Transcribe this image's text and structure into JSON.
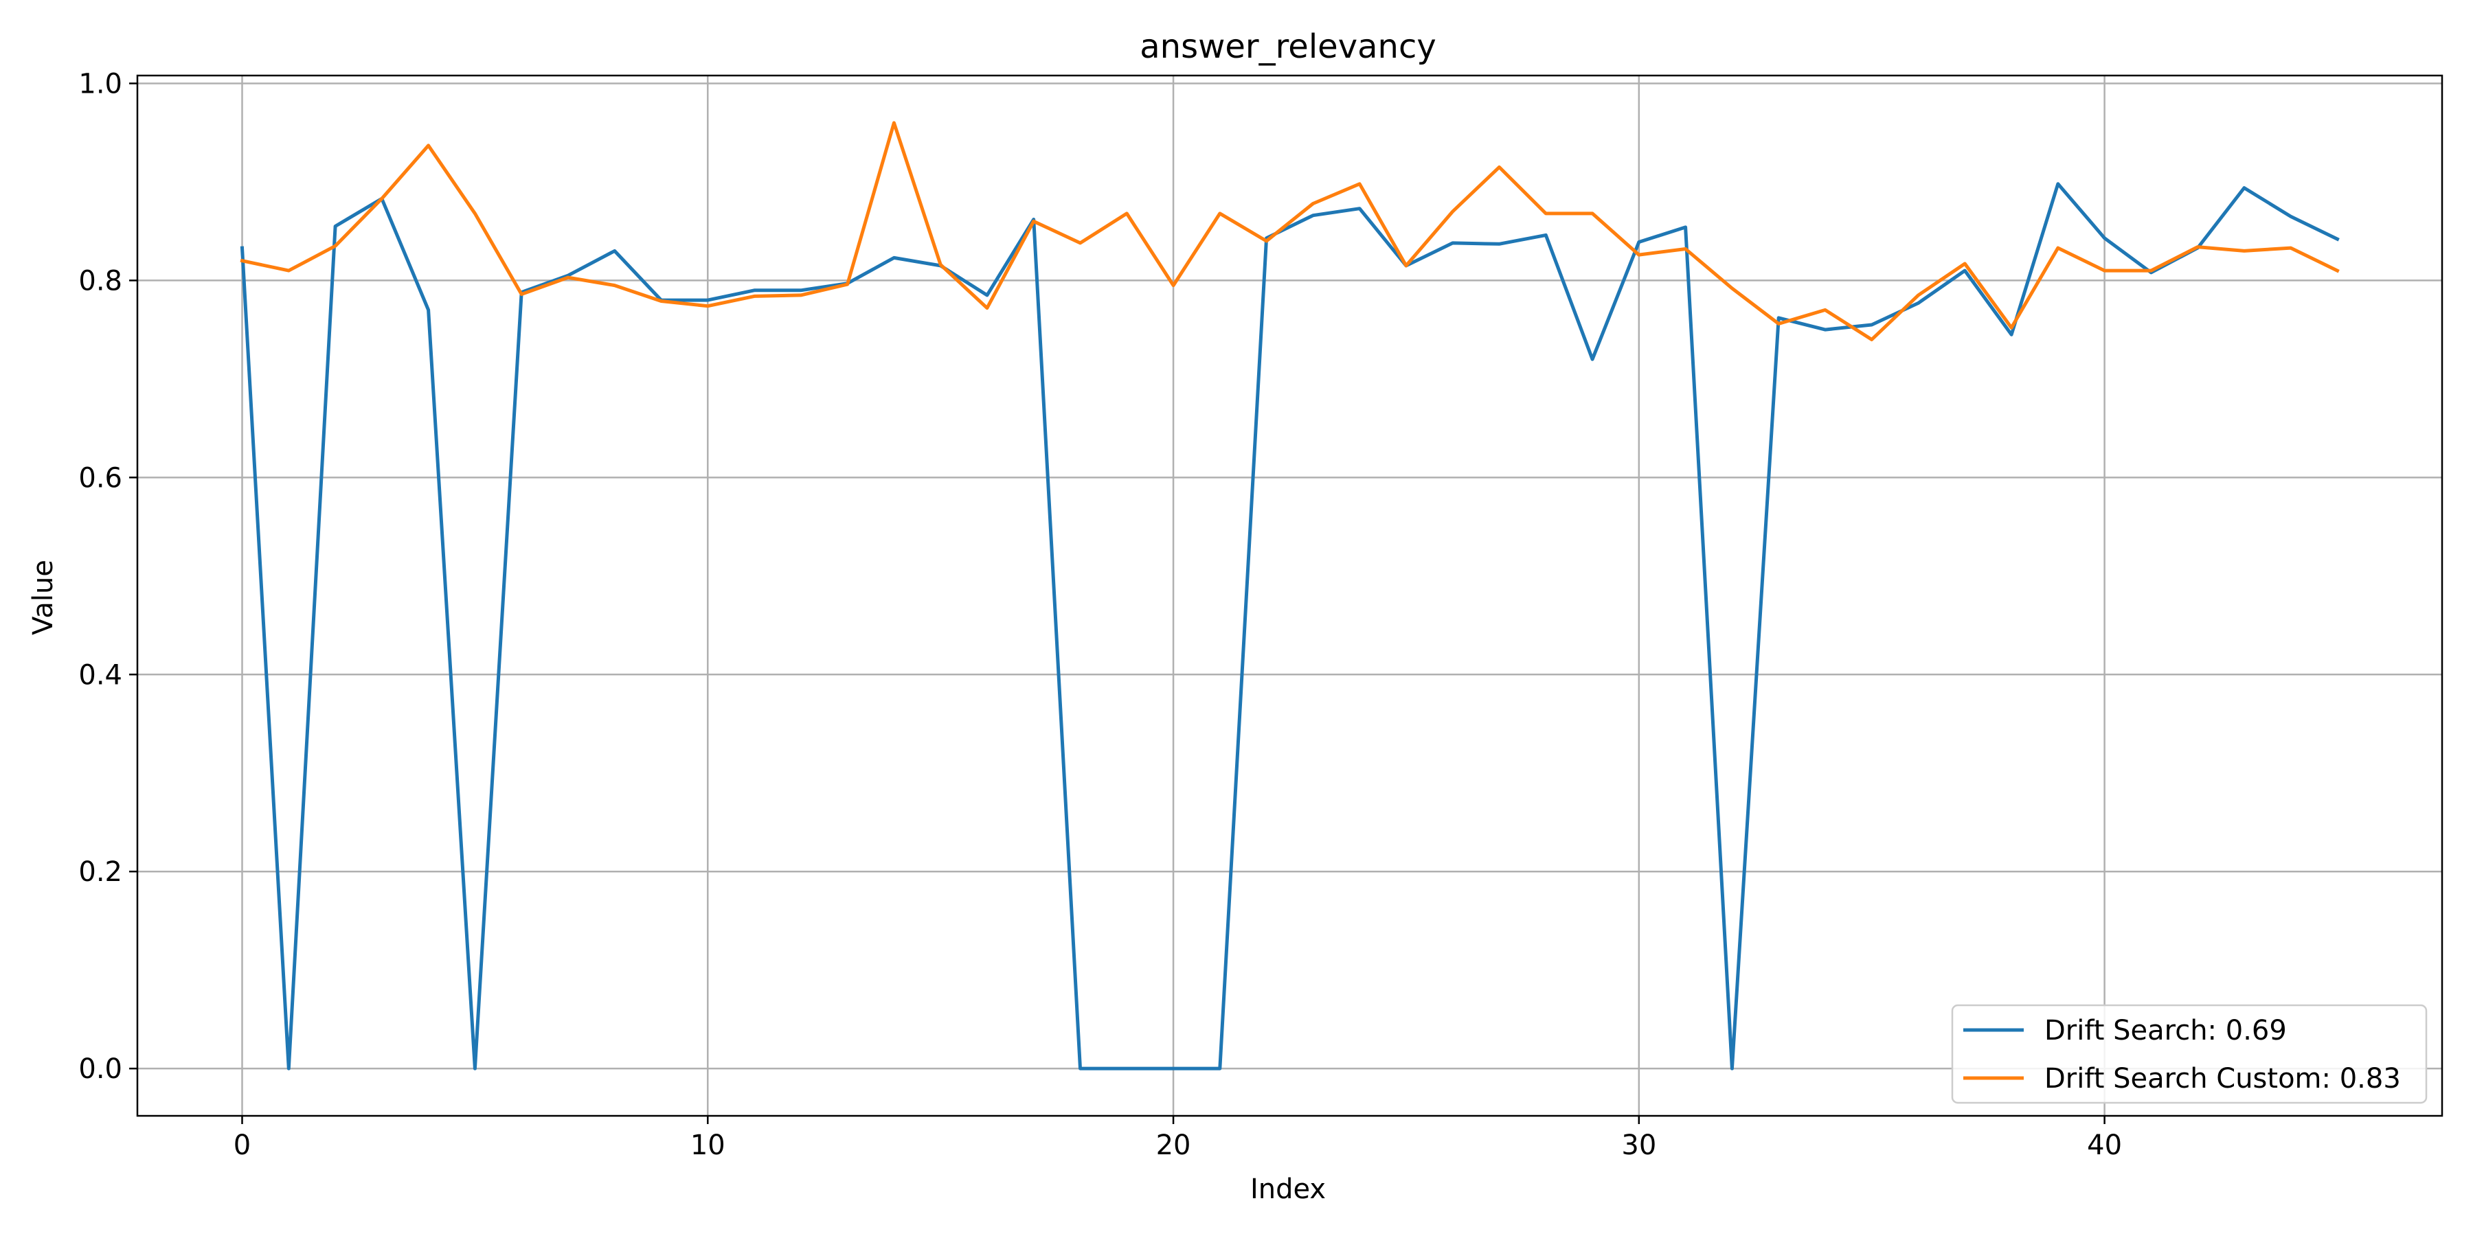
{
  "chart_data": {
    "type": "line",
    "title": "answer_relevancy",
    "xlabel": "Index",
    "ylabel": "Value",
    "xlim": [
      -2.25,
      47.25
    ],
    "ylim": [
      -0.048,
      1.008
    ],
    "xticks": [
      0,
      10,
      20,
      30,
      40
    ],
    "yticks": [
      0.0,
      0.2,
      0.4,
      0.6,
      0.8,
      1.0
    ],
    "xtick_labels": [
      "0",
      "10",
      "20",
      "30",
      "40"
    ],
    "ytick_labels": [
      "0.0",
      "0.2",
      "0.4",
      "0.6",
      "0.8",
      "1.0"
    ],
    "grid": true,
    "legend_position": "lower-right",
    "series": [
      {
        "name": "Drift Search: 0.69",
        "color": "#1f77b4",
        "x": [
          0,
          1,
          2,
          3,
          4,
          5,
          6,
          7,
          8,
          9,
          10,
          11,
          12,
          13,
          14,
          15,
          16,
          17,
          18,
          19,
          20,
          21,
          22,
          23,
          24,
          25,
          26,
          27,
          28,
          29,
          30,
          31,
          32,
          33,
          34,
          35,
          36,
          37,
          38,
          39,
          40,
          41,
          42,
          43,
          44,
          45
        ],
        "values": [
          0.833,
          0.0,
          0.855,
          0.883,
          0.77,
          0.0,
          0.788,
          0.805,
          0.83,
          0.78,
          0.78,
          0.79,
          0.79,
          0.797,
          0.823,
          0.815,
          0.785,
          0.862,
          0.0,
          0.0,
          0.0,
          0.0,
          0.843,
          0.866,
          0.873,
          0.815,
          0.838,
          0.837,
          0.846,
          0.72,
          0.839,
          0.854,
          0.0,
          0.762,
          0.75,
          0.755,
          0.777,
          0.81,
          0.745,
          0.898,
          0.843,
          0.808,
          0.833,
          0.894,
          0.865,
          0.842
        ]
      },
      {
        "name": "Drift Search Custom: 0.83",
        "color": "#ff7f0e",
        "x": [
          0,
          1,
          2,
          3,
          4,
          5,
          6,
          7,
          8,
          9,
          10,
          11,
          12,
          13,
          14,
          15,
          16,
          17,
          18,
          19,
          20,
          21,
          22,
          23,
          24,
          25,
          26,
          27,
          28,
          29,
          30,
          31,
          32,
          33,
          34,
          35,
          36,
          37,
          38,
          39,
          40,
          41,
          42,
          43,
          44,
          45
        ],
        "values": [
          0.82,
          0.81,
          0.835,
          0.883,
          0.937,
          0.868,
          0.786,
          0.803,
          0.795,
          0.779,
          0.774,
          0.784,
          0.785,
          0.796,
          0.96,
          0.816,
          0.772,
          0.86,
          0.838,
          0.868,
          0.795,
          0.868,
          0.84,
          0.878,
          0.898,
          0.815,
          0.87,
          0.915,
          0.868,
          0.868,
          0.826,
          0.832,
          0.792,
          0.756,
          0.77,
          0.74,
          0.785,
          0.817,
          0.752,
          0.833,
          0.81,
          0.81,
          0.834,
          0.83,
          0.833,
          0.81
        ]
      }
    ]
  }
}
